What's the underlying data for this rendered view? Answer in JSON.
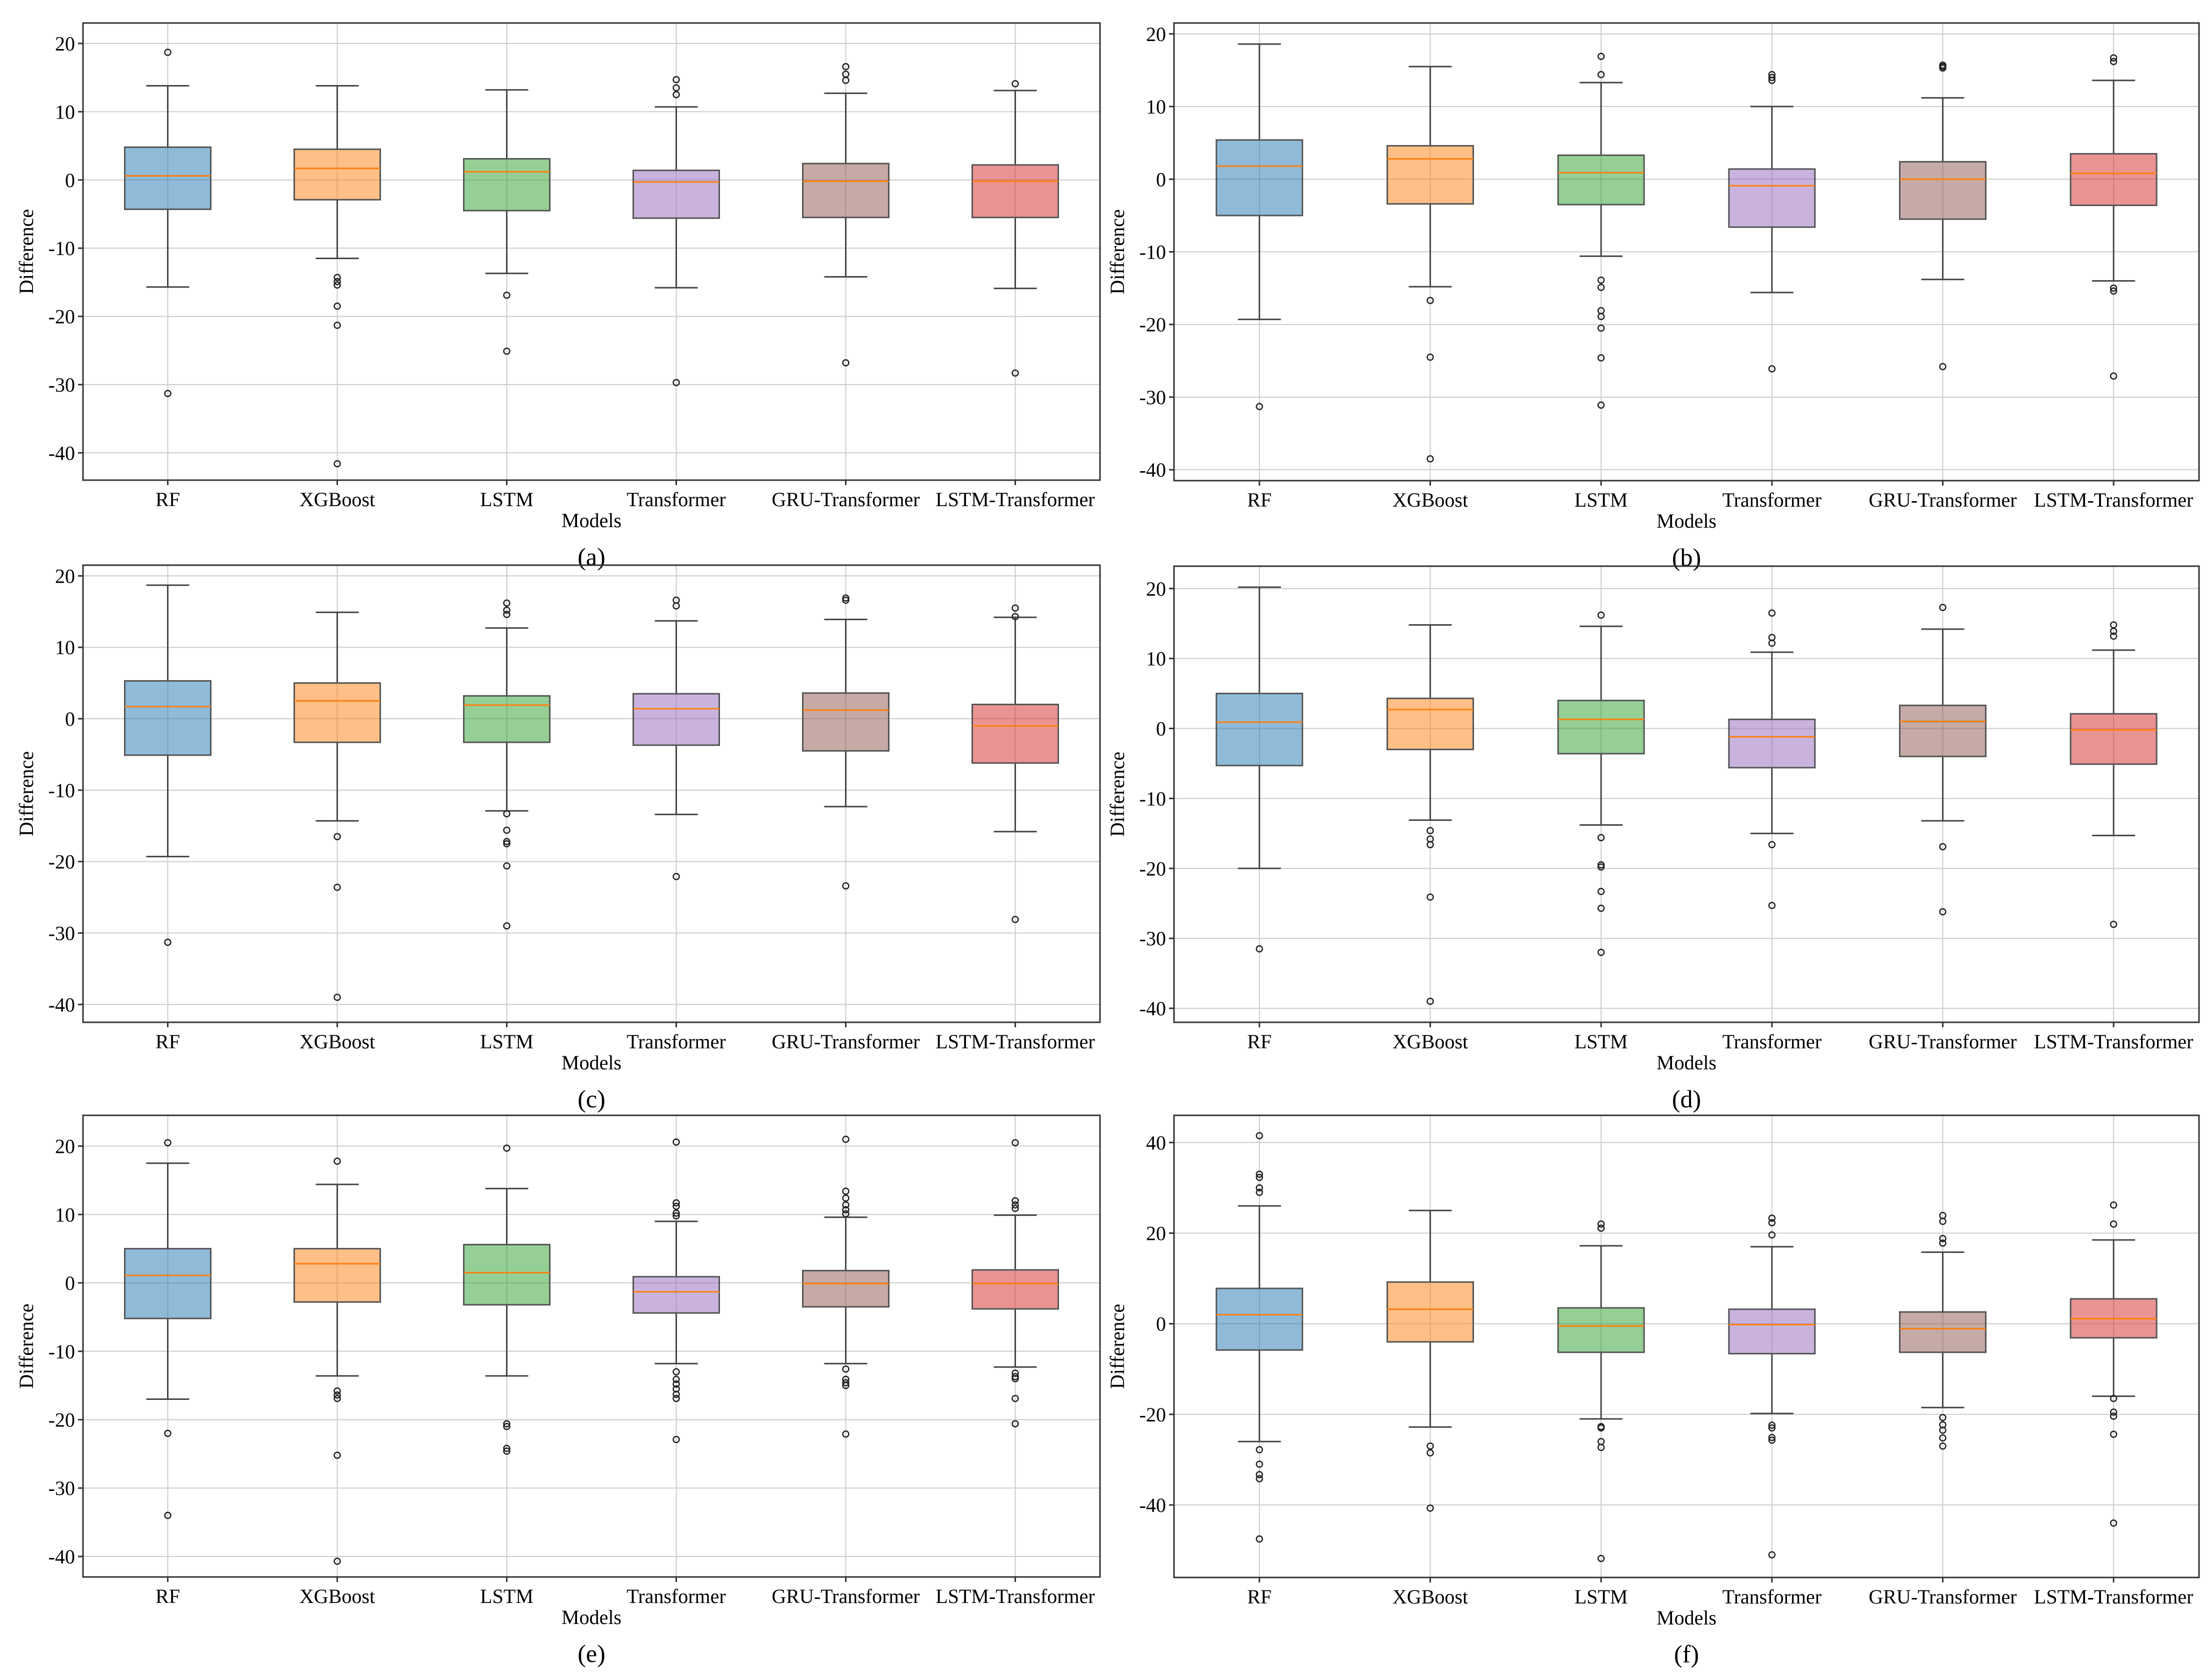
{
  "figure": {
    "ylabel": "Difference",
    "xlabel": "Models"
  },
  "colors": {
    "RF": "#1f77b4",
    "XGBoost": "#ff7f0e",
    "LSTM": "#2ca02c",
    "Transformer": "#9467bd",
    "GRU-Transformer": "#8c564b",
    "LSTM-Transformer": "#d62728",
    "median": "#ff7f0e",
    "whisker": "#444444",
    "grid": "#cccccc"
  },
  "chart_data": [
    {
      "type": "box",
      "caption": "(a)",
      "xlabel": "Models",
      "ylabel": "Difference",
      "ylim": [
        -44,
        23
      ],
      "yticks": [
        20,
        10,
        0,
        -10,
        -20,
        -30,
        -40
      ],
      "grid": true,
      "categories": [
        "RF",
        "XGBoost",
        "LSTM",
        "Transformer",
        "GRU-Transformer",
        "LSTM-Transformer"
      ],
      "boxes": [
        {
          "whislo": -15.7,
          "q1": -4.3,
          "med": 0.6,
          "q3": 4.8,
          "whishi": 13.8,
          "fliers": [
            18.7,
            -31.3
          ]
        },
        {
          "whislo": -11.5,
          "q1": -2.9,
          "med": 1.7,
          "q3": 4.5,
          "whishi": 13.8,
          "fliers": [
            -14.3,
            -14.9,
            -15.4,
            -18.5,
            -21.3,
            -41.6
          ]
        },
        {
          "whislo": -13.7,
          "q1": -4.5,
          "med": 1.2,
          "q3": 3.1,
          "whishi": 13.2,
          "fliers": [
            -16.9,
            -25.1
          ]
        },
        {
          "whislo": -15.8,
          "q1": -5.6,
          "med": -0.3,
          "q3": 1.4,
          "whishi": 10.7,
          "fliers": [
            14.7,
            13.5,
            12.5,
            -29.7
          ]
        },
        {
          "whislo": -14.2,
          "q1": -5.5,
          "med": -0.2,
          "q3": 2.4,
          "whishi": 12.7,
          "fliers": [
            16.6,
            15.5,
            14.6,
            -26.8
          ]
        },
        {
          "whislo": -15.9,
          "q1": -5.5,
          "med": -0.2,
          "q3": 2.2,
          "whishi": 13.1,
          "fliers": [
            14.1,
            -28.3
          ]
        }
      ]
    },
    {
      "type": "box",
      "caption": "(b)",
      "xlabel": "Models",
      "ylabel": "Difference",
      "ylim": [
        -41.5,
        21.5
      ],
      "yticks": [
        20,
        10,
        0,
        -10,
        -20,
        -30,
        -40
      ],
      "grid": true,
      "categories": [
        "RF",
        "XGBoost",
        "LSTM",
        "Transformer",
        "GRU-Transformer",
        "LSTM-Transformer"
      ],
      "boxes": [
        {
          "whislo": -19.3,
          "q1": -5.0,
          "med": 1.8,
          "q3": 5.4,
          "whishi": 18.6,
          "fliers": [
            -31.3
          ]
        },
        {
          "whislo": -14.8,
          "q1": -3.4,
          "med": 2.8,
          "q3": 4.6,
          "whishi": 15.5,
          "fliers": [
            -16.7,
            -24.5,
            -38.5
          ]
        },
        {
          "whislo": -10.6,
          "q1": -3.5,
          "med": 0.9,
          "q3": 3.3,
          "whishi": 13.3,
          "fliers": [
            16.9,
            14.4,
            -13.9,
            -14.9,
            -18.1,
            -18.9,
            -20.5,
            -24.6,
            -31.1
          ]
        },
        {
          "whislo": -15.6,
          "q1": -6.6,
          "med": -0.9,
          "q3": 1.4,
          "whishi": 10.0,
          "fliers": [
            14.4,
            14.0,
            13.6,
            -26.1
          ]
        },
        {
          "whislo": -13.8,
          "q1": -5.5,
          "med": 0.0,
          "q3": 2.4,
          "whishi": 11.2,
          "fliers": [
            15.7,
            15.5,
            15.3,
            -25.8
          ]
        },
        {
          "whislo": -14.0,
          "q1": -3.6,
          "med": 0.8,
          "q3": 3.5,
          "whishi": 13.6,
          "fliers": [
            16.7,
            16.2,
            -15.0,
            -15.4,
            -27.1
          ]
        }
      ]
    },
    {
      "type": "box",
      "caption": "(c)",
      "xlabel": "Models",
      "ylabel": "Difference",
      "ylim": [
        -42.5,
        21.5
      ],
      "yticks": [
        20,
        10,
        0,
        -10,
        -20,
        -30,
        -40
      ],
      "grid": true,
      "categories": [
        "RF",
        "XGBoost",
        "LSTM",
        "Transformer",
        "GRU-Transformer",
        "LSTM-Transformer"
      ],
      "boxes": [
        {
          "whislo": -19.3,
          "q1": -5.1,
          "med": 1.7,
          "q3": 5.3,
          "whishi": 18.7,
          "fliers": [
            -31.3
          ]
        },
        {
          "whislo": -14.3,
          "q1": -3.3,
          "med": 2.5,
          "q3": 5.0,
          "whishi": 14.9,
          "fliers": [
            -16.5,
            -23.6,
            -39.0
          ]
        },
        {
          "whislo": -12.9,
          "q1": -3.3,
          "med": 1.9,
          "q3": 3.2,
          "whishi": 12.7,
          "fliers": [
            16.2,
            15.2,
            14.6,
            -13.3,
            -15.6,
            -17.2,
            -17.5,
            -20.6,
            -29.0
          ]
        },
        {
          "whislo": -13.4,
          "q1": -3.7,
          "med": 1.4,
          "q3": 3.5,
          "whishi": 13.7,
          "fliers": [
            16.6,
            15.8,
            -22.1
          ]
        },
        {
          "whislo": -12.3,
          "q1": -4.5,
          "med": 1.2,
          "q3": 3.6,
          "whishi": 13.9,
          "fliers": [
            16.9,
            16.6,
            -23.4
          ]
        },
        {
          "whislo": -15.8,
          "q1": -6.2,
          "med": -1.0,
          "q3": 2.0,
          "whishi": 14.2,
          "fliers": [
            15.5,
            14.3,
            -28.1
          ]
        }
      ]
    },
    {
      "type": "box",
      "caption": "(d)",
      "xlabel": "Models",
      "ylabel": "Difference",
      "ylim": [
        -42,
        23.2
      ],
      "yticks": [
        20,
        10,
        0,
        -10,
        -20,
        -30,
        -40
      ],
      "grid": true,
      "categories": [
        "RF",
        "XGBoost",
        "LSTM",
        "Transformer",
        "GRU-Transformer",
        "LSTM-Transformer"
      ],
      "boxes": [
        {
          "whislo": -20.0,
          "q1": -5.3,
          "med": 0.9,
          "q3": 5.0,
          "whishi": 20.2,
          "fliers": [
            -31.5
          ]
        },
        {
          "whislo": -13.1,
          "q1": -3.0,
          "med": 2.7,
          "q3": 4.3,
          "whishi": 14.8,
          "fliers": [
            -14.6,
            -15.8,
            -16.6,
            -24.1,
            -39.0
          ]
        },
        {
          "whislo": -13.8,
          "q1": -3.6,
          "med": 1.3,
          "q3": 4.0,
          "whishi": 14.6,
          "fliers": [
            16.2,
            -15.6,
            -19.5,
            -19.8,
            -23.3,
            -25.7,
            -32.0
          ]
        },
        {
          "whislo": -15.0,
          "q1": -5.6,
          "med": -1.2,
          "q3": 1.3,
          "whishi": 10.9,
          "fliers": [
            16.5,
            13.0,
            12.2,
            -16.6,
            -25.3
          ]
        },
        {
          "whislo": -13.2,
          "q1": -4.0,
          "med": 1.0,
          "q3": 3.3,
          "whishi": 14.2,
          "fliers": [
            17.3,
            -16.9,
            -26.2
          ]
        },
        {
          "whislo": -15.3,
          "q1": -5.1,
          "med": -0.2,
          "q3": 2.1,
          "whishi": 11.2,
          "fliers": [
            14.8,
            13.9,
            13.2,
            -28.0
          ]
        }
      ]
    },
    {
      "type": "box",
      "caption": "(e)",
      "xlabel": "Models",
      "ylabel": "Difference",
      "ylim": [
        -43,
        24.5
      ],
      "yticks": [
        20,
        10,
        0,
        -10,
        -20,
        -30,
        -40
      ],
      "grid": true,
      "categories": [
        "RF",
        "XGBoost",
        "LSTM",
        "Transformer",
        "GRU-Transformer",
        "LSTM-Transformer"
      ],
      "boxes": [
        {
          "whislo": -17.0,
          "q1": -5.2,
          "med": 1.1,
          "q3": 5.0,
          "whishi": 17.5,
          "fliers": [
            20.5,
            -22.0,
            -34.0
          ]
        },
        {
          "whislo": -13.6,
          "q1": -2.8,
          "med": 2.8,
          "q3": 5.0,
          "whishi": 14.4,
          "fliers": [
            17.8,
            -15.8,
            -16.4,
            -16.9,
            -25.2,
            -40.7
          ]
        },
        {
          "whislo": -13.6,
          "q1": -3.2,
          "med": 1.5,
          "q3": 5.6,
          "whishi": 13.8,
          "fliers": [
            19.7,
            -20.6,
            -21.0,
            -24.2,
            -24.6
          ]
        },
        {
          "whislo": -11.8,
          "q1": -4.4,
          "med": -1.3,
          "q3": 0.9,
          "whishi": 9.0,
          "fliers": [
            20.6,
            11.7,
            11.2,
            10.2,
            9.8,
            -13.0,
            -14.1,
            -14.8,
            -15.5,
            -16.3,
            -16.9,
            -22.9
          ]
        },
        {
          "whislo": -11.8,
          "q1": -3.5,
          "med": -0.1,
          "q3": 1.8,
          "whishi": 9.6,
          "fliers": [
            21.0,
            13.4,
            12.4,
            11.4,
            10.7,
            10.1,
            -12.6,
            -14.1,
            -14.6,
            -15.0,
            -22.1
          ]
        },
        {
          "whislo": -12.3,
          "q1": -3.8,
          "med": -0.1,
          "q3": 1.9,
          "whishi": 9.9,
          "fliers": [
            20.5,
            12.0,
            11.4,
            10.9,
            -13.2,
            -13.7,
            -14.0,
            -16.9,
            -20.6
          ]
        }
      ]
    },
    {
      "type": "box",
      "caption": "(f)",
      "xlabel": "Models",
      "ylabel": "Difference",
      "ylim": [
        -56,
        46
      ],
      "yticks": [
        40,
        20,
        0,
        -20,
        -40
      ],
      "grid": true,
      "categories": [
        "RF",
        "XGBoost",
        "LSTM",
        "Transformer",
        "GRU-Transformer",
        "LSTM-Transformer"
      ],
      "boxes": [
        {
          "whislo": -26.0,
          "q1": -5.8,
          "med": 2.0,
          "q3": 7.8,
          "whishi": 26.0,
          "fliers": [
            41.5,
            33.0,
            32.3,
            30.0,
            29.0,
            -27.8,
            -31.0,
            -33.3,
            -34.2,
            -47.5
          ]
        },
        {
          "whislo": -22.8,
          "q1": -4.0,
          "med": 3.2,
          "q3": 9.2,
          "whishi": 25.0,
          "fliers": [
            -27.0,
            -28.5,
            -40.7
          ]
        },
        {
          "whislo": -21.0,
          "q1": -6.3,
          "med": -0.5,
          "q3": 3.5,
          "whishi": 17.2,
          "fliers": [
            22.0,
            21.1,
            -22.7,
            -23.0,
            -26.0,
            -27.3,
            -51.8
          ]
        },
        {
          "whislo": -19.8,
          "q1": -6.6,
          "med": -0.2,
          "q3": 3.2,
          "whishi": 17.0,
          "fliers": [
            23.3,
            22.3,
            19.6,
            -22.4,
            -23.0,
            -25.1,
            -25.7,
            -51.0
          ]
        },
        {
          "whislo": -18.5,
          "q1": -6.3,
          "med": -1.1,
          "q3": 2.6,
          "whishi": 15.8,
          "fliers": [
            23.9,
            22.6,
            18.8,
            17.8,
            -20.7,
            -22.3,
            -23.5,
            -25.2,
            -27.0
          ]
        },
        {
          "whislo": -16.0,
          "q1": -3.1,
          "med": 1.1,
          "q3": 5.5,
          "whishi": 18.5,
          "fliers": [
            26.2,
            22.0,
            -16.5,
            -19.5,
            -20.4,
            -24.4,
            -44.0
          ]
        }
      ]
    }
  ]
}
